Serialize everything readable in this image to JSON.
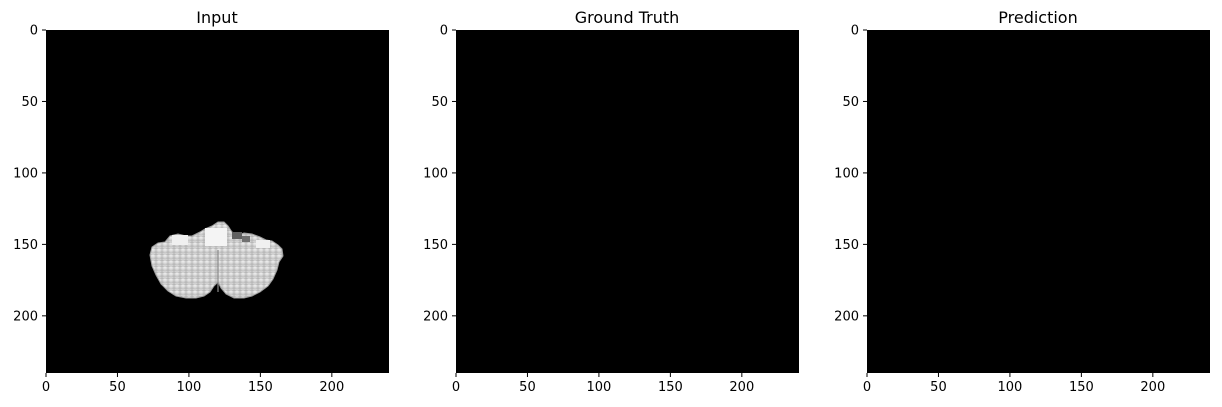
{
  "chart_data": [
    {
      "type": "heatmap",
      "title": "Input",
      "xlim": [
        0,
        240
      ],
      "ylim": [
        240,
        0
      ],
      "x_ticks": [
        "0",
        "50",
        "100",
        "150",
        "200"
      ],
      "y_ticks": [
        "0",
        "50",
        "100",
        "150",
        "200"
      ],
      "background": "#000000",
      "image_content": "grayscale brain MRI slice (cerebellum) on black background",
      "region": {
        "x_range": [
          72,
          168
        ],
        "y_range": [
          135,
          190
        ],
        "color": "#dcdcdc"
      }
    },
    {
      "type": "heatmap",
      "title": "Ground Truth",
      "xlim": [
        0,
        240
      ],
      "ylim": [
        240,
        0
      ],
      "x_ticks": [
        "0",
        "50",
        "100",
        "150",
        "200"
      ],
      "y_ticks": [
        "0",
        "50",
        "100",
        "150",
        "200"
      ],
      "background": "#000000",
      "image_content": "all black (empty mask)"
    },
    {
      "type": "heatmap",
      "title": "Prediction",
      "xlim": [
        0,
        240
      ],
      "ylim": [
        240,
        0
      ],
      "x_ticks": [
        "0",
        "50",
        "100",
        "150",
        "200"
      ],
      "y_ticks": [
        "0",
        "50",
        "100",
        "150",
        "200"
      ],
      "background": "#000000",
      "image_content": "all black (empty mask)"
    }
  ]
}
